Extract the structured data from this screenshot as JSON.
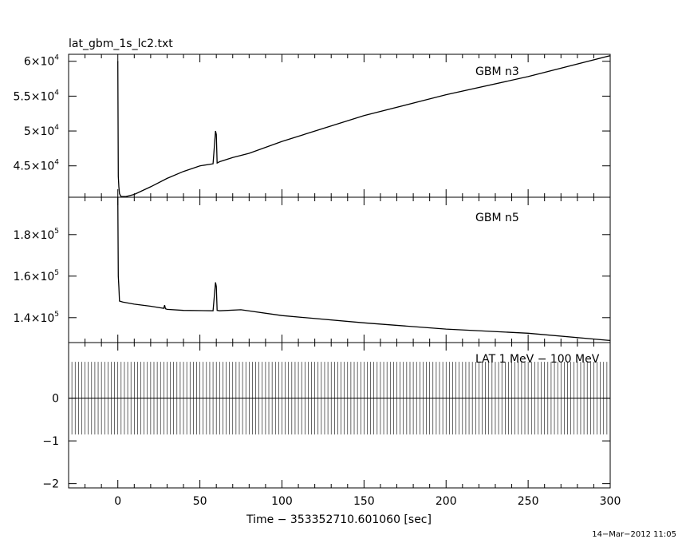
{
  "chart_data": {
    "title": "lat_gbm_1s_lc2.txt",
    "xlabel": "Time − 353352710.601060 [sec]",
    "timestamp": "14−Mar−2012 11:05",
    "x_range": [
      -30,
      300
    ],
    "x_ticks": [
      0,
      50,
      100,
      150,
      200,
      250,
      300
    ],
    "panels": [
      {
        "type": "line",
        "name": "GBM n3",
        "ylim": [
          40500,
          61000
        ],
        "y_ticks": [
          {
            "v": 45000,
            "m": "4.5",
            "e": "4"
          },
          {
            "v": 50000,
            "m": "5",
            "e": "4"
          },
          {
            "v": 55000,
            "m": "5.5",
            "e": "4"
          },
          {
            "v": 60000,
            "m": "6",
            "e": "4"
          }
        ],
        "x": [
          0,
          0.3,
          0.6,
          1,
          2,
          5,
          10,
          20,
          30,
          40,
          50,
          58,
          59.5,
          60,
          60.5,
          62,
          70,
          80,
          100,
          150,
          200,
          250,
          300
        ],
        "y": [
          60000,
          43500,
          42000,
          41000,
          40600,
          40600,
          40900,
          42000,
          43200,
          44200,
          45000,
          45300,
          50000,
          49500,
          45400,
          45600,
          46200,
          46800,
          48500,
          52200,
          55200,
          57800,
          60800
        ]
      },
      {
        "type": "line",
        "name": "GBM n5",
        "ylim": [
          128000,
          198000
        ],
        "y_ticks": [
          {
            "v": 140000,
            "m": "1.4",
            "e": "5"
          },
          {
            "v": 160000,
            "m": "1.6",
            "e": "5"
          },
          {
            "v": 180000,
            "m": "1.8",
            "e": "5"
          }
        ],
        "x": [
          0,
          0.3,
          0.6,
          1,
          3,
          10,
          20,
          28,
          28.5,
          29,
          30,
          40,
          58,
          59.5,
          60,
          60.5,
          62,
          75,
          100,
          150,
          200,
          250,
          300
        ],
        "y": [
          198000,
          160000,
          155000,
          148000,
          147500,
          146500,
          145500,
          144500,
          146000,
          144300,
          144000,
          143500,
          143300,
          157000,
          155000,
          143500,
          143300,
          143800,
          141000,
          137500,
          134500,
          132500,
          129000
        ]
      },
      {
        "type": "line",
        "name": "LAT 1 MeV − 100 MeV",
        "label_visible": "LAT  1 MeV  − 100 MeV",
        "ylim": [
          -2.1,
          1.3
        ],
        "y_ticks": [
          {
            "v": -2,
            "m": "−2"
          },
          {
            "v": -1,
            "m": "−1"
          },
          {
            "v": 0,
            "m": "0"
          }
        ],
        "band_range": [
          -0.85,
          0.85
        ],
        "x_spacing_sec": 1,
        "baseline": 0
      }
    ]
  }
}
